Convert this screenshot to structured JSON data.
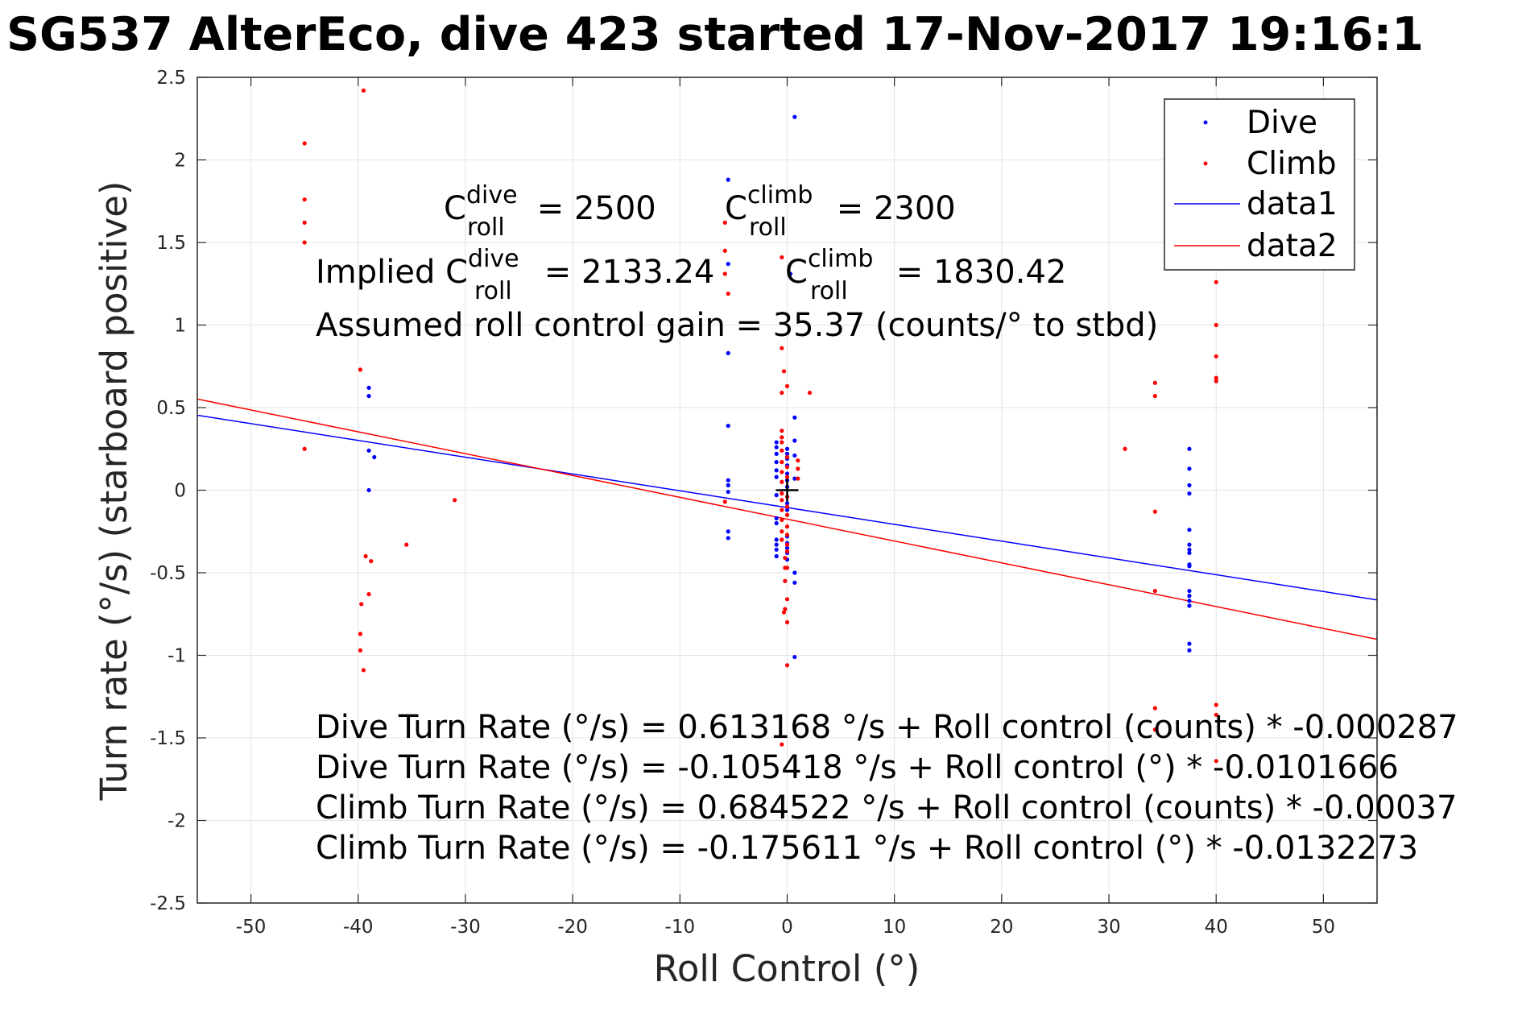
{
  "title": "SG537 AlterEco, dive 423 started 17-Nov-2017 19:16:1",
  "colors": {
    "dive": "#0000ff",
    "climb": "#ff0000",
    "axes": "#262626",
    "grid": "#e3e3e3"
  },
  "chart_data": {
    "type": "scatter",
    "xlabel": "Roll Control (°)",
    "ylabel": "Turn rate (°/s) (starboard positive)",
    "xlim": [
      -55,
      55
    ],
    "ylim": [
      -2.5,
      2.5
    ],
    "grid": true,
    "legend_position": "top-right",
    "x_ticks": [
      -50,
      -40,
      -30,
      -20,
      -10,
      0,
      10,
      20,
      30,
      40,
      50
    ],
    "y_ticks": [
      -2.5,
      -2,
      -1.5,
      -1,
      -0.5,
      0,
      0.5,
      1,
      1.5,
      2,
      2.5
    ],
    "x_tick_labels": [
      "-50",
      "-40",
      "-30",
      "-20",
      "-10",
      "0",
      "10",
      "20",
      "30",
      "40",
      "50"
    ],
    "y_tick_labels": [
      "-2.5",
      "-2",
      "-1.5",
      "-1",
      "-0.5",
      "0",
      "0.5",
      "1",
      "1.5",
      "2",
      "2.5"
    ],
    "series": [
      {
        "name": "Dive",
        "kind": "points",
        "color": "#0000ff",
        "points": [
          [
            -39,
            0.62
          ],
          [
            -39,
            0.57
          ],
          [
            -39,
            0.24
          ],
          [
            -38.5,
            0.2
          ],
          [
            -39,
            0.0
          ],
          [
            -5.5,
            1.88
          ],
          [
            -5.5,
            1.37
          ],
          [
            -5.5,
            0.83
          ],
          [
            -5.5,
            0.39
          ],
          [
            -5.5,
            0.06
          ],
          [
            -5.5,
            0.03
          ],
          [
            -5.5,
            -0.01
          ],
          [
            -5.5,
            -0.25
          ],
          [
            -5.5,
            -0.29
          ],
          [
            0.7,
            2.26
          ],
          [
            0.3,
            1.31
          ],
          [
            0.7,
            0.44
          ],
          [
            0.7,
            0.3
          ],
          [
            0.7,
            0.21
          ],
          [
            0.7,
            0.07
          ],
          [
            -1,
            0.29
          ],
          [
            -1,
            0.26
          ],
          [
            -1,
            0.22
          ],
          [
            -1,
            0.17
          ],
          [
            -1,
            0.12
          ],
          [
            -1,
            0.08
          ],
          [
            -1,
            -0.03
          ],
          [
            -1,
            -0.17
          ],
          [
            -1,
            -0.2
          ],
          [
            -1,
            -0.3
          ],
          [
            -1,
            -0.33
          ],
          [
            -1,
            -0.36
          ],
          [
            -1,
            -0.4
          ],
          [
            0,
            0.25
          ],
          [
            0,
            0.22
          ],
          [
            0,
            0.19
          ],
          [
            0,
            0.15
          ],
          [
            0,
            0.1
          ],
          [
            0,
            0.06
          ],
          [
            0,
            0.02
          ],
          [
            0,
            -0.08
          ],
          [
            0,
            -0.12
          ],
          [
            0,
            -0.28
          ],
          [
            0,
            -0.32
          ],
          [
            0,
            -0.35
          ],
          [
            0,
            -0.38
          ],
          [
            0,
            -0.42
          ],
          [
            0.7,
            -0.5
          ],
          [
            0.7,
            -0.56
          ],
          [
            0.7,
            -1.01
          ],
          [
            37.5,
            0.25
          ],
          [
            37.5,
            0.13
          ],
          [
            37.5,
            0.03
          ],
          [
            37.5,
            -0.02
          ],
          [
            37.5,
            -0.24
          ],
          [
            37.5,
            -0.33
          ],
          [
            37.5,
            -0.36
          ],
          [
            37.5,
            -0.38
          ],
          [
            37.5,
            -0.45
          ],
          [
            37.5,
            -0.46
          ],
          [
            37.5,
            -0.61
          ],
          [
            37.5,
            -0.64
          ],
          [
            37.5,
            -0.67
          ],
          [
            37.5,
            -0.7
          ],
          [
            37.5,
            -0.93
          ],
          [
            37.5,
            -0.97
          ]
        ]
      },
      {
        "name": "Climb",
        "kind": "points",
        "color": "#ff0000",
        "points": [
          [
            -45,
            2.1
          ],
          [
            -45,
            1.76
          ],
          [
            -45,
            1.62
          ],
          [
            -45,
            1.5
          ],
          [
            -45,
            0.25
          ],
          [
            -39.5,
            2.42
          ],
          [
            -39.8,
            0.73
          ],
          [
            -39.3,
            -0.4
          ],
          [
            -38.8,
            -0.43
          ],
          [
            -39,
            -0.63
          ],
          [
            -39.7,
            -0.69
          ],
          [
            -39.8,
            -0.87
          ],
          [
            -39.8,
            -0.97
          ],
          [
            -39.5,
            -1.09
          ],
          [
            -35.5,
            -0.33
          ],
          [
            -31,
            -0.06
          ],
          [
            -5.8,
            1.62
          ],
          [
            -5.8,
            1.45
          ],
          [
            -5.8,
            1.31
          ],
          [
            -5.5,
            1.19
          ],
          [
            -5.8,
            -0.07
          ],
          [
            -0.5,
            1.41
          ],
          [
            -0.5,
            0.86
          ],
          [
            -0.3,
            0.72
          ],
          [
            -0.5,
            0.59
          ],
          [
            0,
            0.63
          ],
          [
            2.1,
            0.59
          ],
          [
            -0.5,
            0.36
          ],
          [
            -0.5,
            0.32
          ],
          [
            -0.5,
            0.29
          ],
          [
            -0.5,
            0.24
          ],
          [
            -0.5,
            0.17
          ],
          [
            -0.5,
            0.11
          ],
          [
            -0.5,
            0.05
          ],
          [
            -0.5,
            -0.02
          ],
          [
            -0.5,
            -0.06
          ],
          [
            -0.5,
            -0.12
          ],
          [
            -0.5,
            -0.18
          ],
          [
            -0.5,
            -0.25
          ],
          [
            -0.5,
            -0.3
          ],
          [
            0,
            0.2
          ],
          [
            0,
            0.14
          ],
          [
            0,
            0.08
          ],
          [
            0,
            -0.04
          ],
          [
            0,
            -0.1
          ],
          [
            0,
            -0.15
          ],
          [
            0,
            -0.22
          ],
          [
            0,
            -0.27
          ],
          [
            0,
            -0.33
          ],
          [
            0,
            -0.37
          ],
          [
            1,
            0.18
          ],
          [
            1,
            0.13
          ],
          [
            1,
            0.07
          ],
          [
            -0.2,
            -0.41
          ],
          [
            -0.2,
            -0.47
          ],
          [
            -0.2,
            -0.55
          ],
          [
            0,
            -0.47
          ],
          [
            0,
            -0.66
          ],
          [
            -0.3,
            -0.74
          ],
          [
            -0.2,
            -0.72
          ],
          [
            0,
            -0.8
          ],
          [
            0,
            -1.06
          ],
          [
            -0.5,
            -1.54
          ],
          [
            31.5,
            0.25
          ],
          [
            34.3,
            0.65
          ],
          [
            34.3,
            0.57
          ],
          [
            34.3,
            -0.13
          ],
          [
            34.3,
            -0.61
          ],
          [
            34.3,
            -1.32
          ],
          [
            34.3,
            -1.45
          ],
          [
            40,
            1.26
          ],
          [
            40,
            1.0
          ],
          [
            40,
            0.81
          ],
          [
            40,
            0.68
          ],
          [
            40,
            0.66
          ],
          [
            40,
            -1.3
          ],
          [
            40,
            -1.36
          ],
          [
            40,
            -1.64
          ]
        ]
      },
      {
        "name": "data1",
        "kind": "line",
        "color": "#0000ff",
        "intercept": -0.105418,
        "slope": -0.0101666,
        "x_range": [
          -55,
          55
        ]
      },
      {
        "name": "data2",
        "kind": "line",
        "color": "#ff0000",
        "intercept": -0.175611,
        "slope": -0.0132273,
        "x_range": [
          -55,
          55
        ]
      }
    ],
    "origin_marker": {
      "symbol": "+",
      "x": 0,
      "y": 0
    }
  },
  "annotations": {
    "c_roll_dive": {
      "base": "C",
      "sup": "dive",
      "sub": "roll",
      "value": " = 2500"
    },
    "c_roll_climb": {
      "base": "C",
      "sup": "climb",
      "sub": "roll",
      "value": " = 2300"
    },
    "implied_dive": {
      "prefix": "Implied C",
      "sup": "dive",
      "sub": "roll",
      "value": " = 2133.24"
    },
    "implied_climb": {
      "base": "C",
      "sup": "climb",
      "sub": "roll",
      "value": " = 1830.42"
    },
    "gain": "Assumed roll control gain = 35.37 (counts/° to stbd)",
    "fit_lines": [
      "Dive Turn Rate (°/s) = 0.613168 °/s + Roll control (counts) * -0.000287",
      "Dive Turn Rate (°/s) = -0.105418 °/s + Roll control (°) * -0.0101666",
      "Climb Turn Rate (°/s) = 0.684522 °/s + Roll control (counts) * -0.00037",
      "Climb Turn Rate (°/s) = -0.175611 °/s + Roll control (°) * -0.0132273"
    ]
  }
}
